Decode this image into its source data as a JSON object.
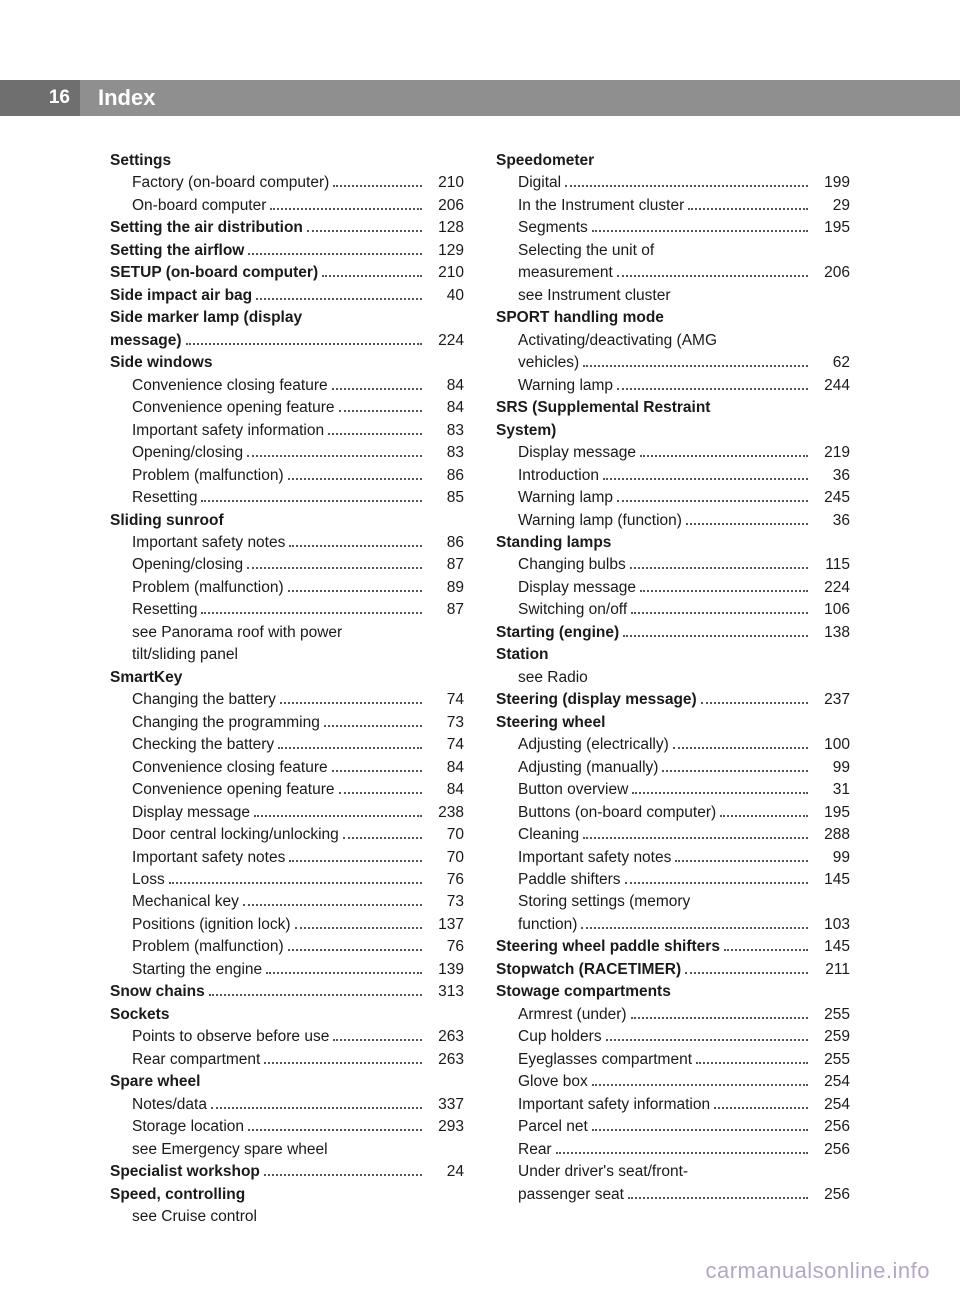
{
  "header": {
    "page_number": "16",
    "title": "Index"
  },
  "footer": {
    "text": "carmanualsonline.info"
  },
  "left_col": [
    {
      "label": "Settings",
      "bold": true
    },
    {
      "label": "Factory (on-board computer)",
      "page": "210",
      "sub": true
    },
    {
      "label": "On-board computer",
      "page": "206",
      "sub": true
    },
    {
      "label": "Setting the air distribution",
      "page": "128",
      "bold": true
    },
    {
      "label": "Setting the airflow",
      "page": "129",
      "bold": true
    },
    {
      "label": "SETUP (on-board computer)",
      "page": "210",
      "bold": true
    },
    {
      "label": "Side impact air bag",
      "page": "40",
      "bold": true
    },
    {
      "label": "Side marker lamp (display",
      "bold": true,
      "cont": true
    },
    {
      "label": "message)",
      "page": "224",
      "bold": true
    },
    {
      "label": "Side windows",
      "bold": true
    },
    {
      "label": "Convenience closing feature",
      "page": "84",
      "sub": true
    },
    {
      "label": "Convenience opening feature",
      "page": "84",
      "sub": true
    },
    {
      "label": "Important safety information",
      "page": "83",
      "sub": true
    },
    {
      "label": "Opening/closing",
      "page": "83",
      "sub": true
    },
    {
      "label": "Problem (malfunction)",
      "page": "86",
      "sub": true
    },
    {
      "label": "Resetting",
      "page": "85",
      "sub": true
    },
    {
      "label": "Sliding sunroof",
      "bold": true
    },
    {
      "label": "Important safety notes",
      "page": "86",
      "sub": true
    },
    {
      "label": "Opening/closing",
      "page": "87",
      "sub": true
    },
    {
      "label": "Problem (malfunction)",
      "page": "89",
      "sub": true
    },
    {
      "label": "Resetting",
      "page": "87",
      "sub": true
    },
    {
      "label": "see Panorama roof with power",
      "sub": true,
      "cont": true
    },
    {
      "label": "tilt/sliding panel",
      "sub": true,
      "cont": true
    },
    {
      "label": "SmartKey",
      "bold": true
    },
    {
      "label": "Changing the battery",
      "page": "74",
      "sub": true
    },
    {
      "label": "Changing the programming",
      "page": "73",
      "sub": true
    },
    {
      "label": "Checking the battery",
      "page": "74",
      "sub": true
    },
    {
      "label": "Convenience closing feature",
      "page": "84",
      "sub": true
    },
    {
      "label": "Convenience opening feature",
      "page": "84",
      "sub": true
    },
    {
      "label": "Display message",
      "page": "238",
      "sub": true
    },
    {
      "label": "Door central locking/unlocking",
      "page": "70",
      "sub": true
    },
    {
      "label": "Important safety notes",
      "page": "70",
      "sub": true
    },
    {
      "label": "Loss",
      "page": "76",
      "sub": true
    },
    {
      "label": "Mechanical key",
      "page": "73",
      "sub": true
    },
    {
      "label": "Positions (ignition lock)",
      "page": "137",
      "sub": true
    },
    {
      "label": "Problem (malfunction)",
      "page": "76",
      "sub": true
    },
    {
      "label": "Starting the engine",
      "page": "139",
      "sub": true
    },
    {
      "label": "Snow chains",
      "page": "313",
      "bold": true
    },
    {
      "label": "Sockets",
      "bold": true
    },
    {
      "label": "Points to observe before use",
      "page": "263",
      "sub": true
    },
    {
      "label": "Rear compartment",
      "page": "263",
      "sub": true
    },
    {
      "label": "Spare wheel",
      "bold": true
    },
    {
      "label": "Notes/data",
      "page": "337",
      "sub": true
    },
    {
      "label": "Storage location",
      "page": "293",
      "sub": true
    },
    {
      "label": "see Emergency spare wheel",
      "sub": true,
      "cont": true
    },
    {
      "label": "Specialist workshop",
      "page": "24",
      "bold": true
    },
    {
      "label": "Speed, controlling",
      "bold": true
    },
    {
      "label": "see Cruise control",
      "sub": true,
      "cont": true
    }
  ],
  "right_col": [
    {
      "label": "Speedometer",
      "bold": true
    },
    {
      "label": "Digital",
      "page": "199",
      "sub": true
    },
    {
      "label": "In the Instrument cluster",
      "page": "29",
      "sub": true
    },
    {
      "label": "Segments",
      "page": "195",
      "sub": true
    },
    {
      "label": "Selecting the unit of",
      "sub": true,
      "cont": true
    },
    {
      "label": "measurement",
      "page": "206",
      "sub": true
    },
    {
      "label": "see Instrument cluster",
      "sub": true,
      "cont": true
    },
    {
      "label": "SPORT handling mode",
      "bold": true
    },
    {
      "label": "Activating/deactivating (AMG",
      "sub": true,
      "cont": true
    },
    {
      "label": "vehicles)",
      "page": "62",
      "sub": true
    },
    {
      "label": "Warning lamp",
      "page": "244",
      "sub": true
    },
    {
      "label": "SRS (Supplemental Restraint",
      "bold": true,
      "cont": true
    },
    {
      "label": "System)",
      "bold": true
    },
    {
      "label": "Display message",
      "page": "219",
      "sub": true
    },
    {
      "label": "Introduction",
      "page": "36",
      "sub": true
    },
    {
      "label": "Warning lamp",
      "page": "245",
      "sub": true
    },
    {
      "label": "Warning lamp (function)",
      "page": "36",
      "sub": true
    },
    {
      "label": "Standing lamps",
      "bold": true
    },
    {
      "label": "Changing bulbs",
      "page": "115",
      "sub": true
    },
    {
      "label": "Display message",
      "page": "224",
      "sub": true
    },
    {
      "label": "Switching on/off",
      "page": "106",
      "sub": true
    },
    {
      "label": "Starting (engine)",
      "page": "138",
      "bold": true
    },
    {
      "label": "Station",
      "bold": true
    },
    {
      "label": "see Radio",
      "sub": true,
      "cont": true
    },
    {
      "label": "Steering (display message)",
      "page": "237",
      "bold": true
    },
    {
      "label": "Steering wheel",
      "bold": true
    },
    {
      "label": "Adjusting (electrically)",
      "page": "100",
      "sub": true
    },
    {
      "label": "Adjusting (manually)",
      "page": "99",
      "sub": true
    },
    {
      "label": "Button overview",
      "page": "31",
      "sub": true
    },
    {
      "label": "Buttons (on-board computer)",
      "page": "195",
      "sub": true
    },
    {
      "label": "Cleaning",
      "page": "288",
      "sub": true
    },
    {
      "label": "Important safety notes",
      "page": "99",
      "sub": true
    },
    {
      "label": "Paddle shifters",
      "page": "145",
      "sub": true
    },
    {
      "label": "Storing settings (memory",
      "sub": true,
      "cont": true
    },
    {
      "label": "function)",
      "page": "103",
      "sub": true
    },
    {
      "label": "Steering wheel paddle shifters",
      "page": "145",
      "bold": true
    },
    {
      "label": "Stopwatch (RACETIMER)",
      "page": "211",
      "bold": true
    },
    {
      "label": "Stowage compartments",
      "bold": true
    },
    {
      "label": "Armrest (under)",
      "page": "255",
      "sub": true
    },
    {
      "label": "Cup holders",
      "page": "259",
      "sub": true
    },
    {
      "label": "Eyeglasses compartment",
      "page": "255",
      "sub": true
    },
    {
      "label": "Glove box",
      "page": "254",
      "sub": true
    },
    {
      "label": "Important safety information",
      "page": "254",
      "sub": true
    },
    {
      "label": "Parcel net",
      "page": "256",
      "sub": true
    },
    {
      "label": "Rear",
      "page": "256",
      "sub": true
    },
    {
      "label": "Under driver's seat/front-",
      "sub": true,
      "cont": true
    },
    {
      "label": "passenger seat",
      "page": "256",
      "sub": true
    }
  ]
}
